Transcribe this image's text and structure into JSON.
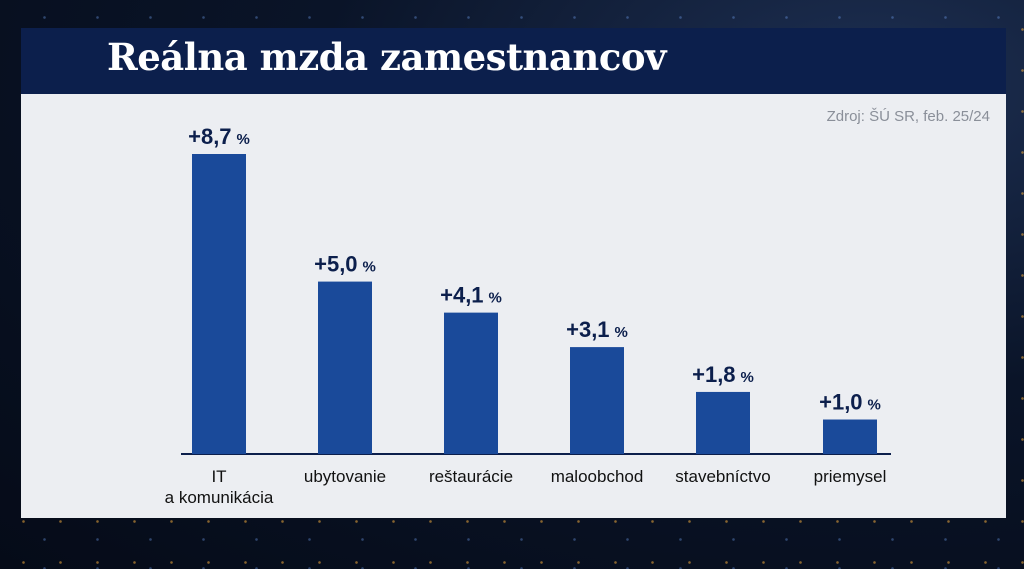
{
  "title": "Reálna mzda zamestnancov",
  "source": "Zdroj: ŠÚ SR, feb. 25/24",
  "colors": {
    "bar": "#1a4a9a",
    "title_bg": "#0c1f4c",
    "panel_bg": "#eceef2",
    "label": "#0c1f4c"
  },
  "chart_data": {
    "type": "bar",
    "title": "Reálna mzda zamestnancov",
    "categories": [
      [
        "IT",
        "a komunikácia"
      ],
      [
        "ubytovanie"
      ],
      [
        "reštaurácie"
      ],
      [
        "maloobchod"
      ],
      [
        "stavebníctvo"
      ],
      [
        "priemysel"
      ]
    ],
    "values": [
      8.7,
      5.0,
      4.1,
      3.1,
      1.8,
      1.0
    ],
    "value_labels": [
      "+8,7",
      "+5,0",
      "+4,1",
      "+3,1",
      "+1,8",
      "+1,0"
    ],
    "unit": "%",
    "ylim": [
      0,
      8.7
    ],
    "grid": false,
    "legend": "none"
  }
}
